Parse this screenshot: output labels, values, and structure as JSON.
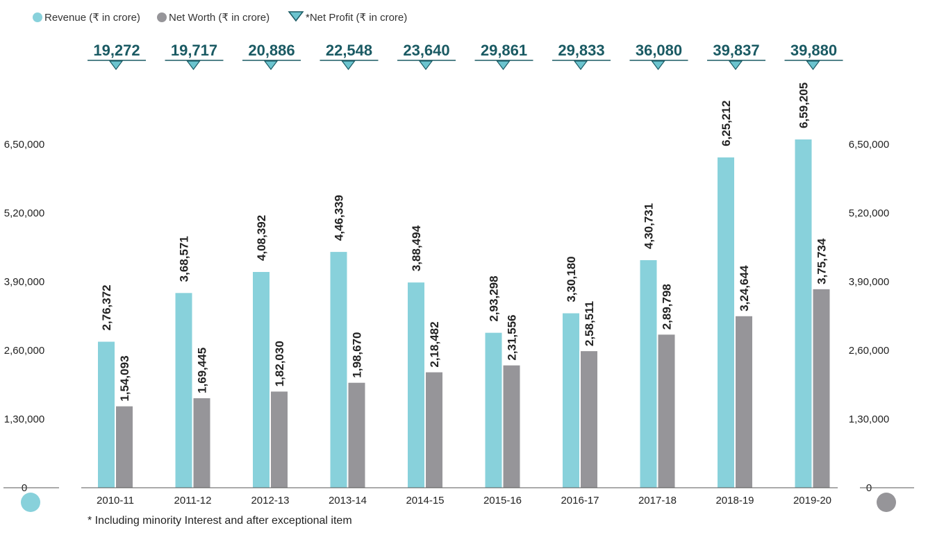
{
  "legend": {
    "revenue_label": "Revenue (₹ in crore)",
    "networth_label": "Net Worth (₹ in crore)",
    "profit_label": "*Net Profit (₹ in crore)"
  },
  "colors": {
    "revenue": "#88d1db",
    "networth": "#969599",
    "profit_text": "#1a5a63",
    "profit_marker": "#6cc4cf"
  },
  "footnote": "* Including minority Interest and after exceptional item",
  "chart_data": {
    "type": "bar",
    "categories": [
      "2010-11",
      "2011-12",
      "2012-13",
      "2013-14",
      "2014-15",
      "2015-16",
      "2016-17",
      "2017-18",
      "2018-19",
      "2019-20"
    ],
    "series": [
      {
        "name": "Revenue (₹ in crore)",
        "values": [
          276372,
          368571,
          408392,
          446339,
          388494,
          293298,
          330180,
          430731,
          625212,
          659205
        ],
        "labels": [
          "2,76,372",
          "3,68,571",
          "4,08,392",
          "4,46,339",
          "3,88,494",
          "2,93,298",
          "3,30,180",
          "4,30,731",
          "6,25,212",
          "6,59,205"
        ]
      },
      {
        "name": "Net Worth (₹ in crore)",
        "values": [
          154093,
          169445,
          182030,
          198670,
          218482,
          231556,
          258511,
          289798,
          324644,
          375734
        ],
        "labels": [
          "1,54,093",
          "1,69,445",
          "1,82,030",
          "1,98,670",
          "2,18,482",
          "2,31,556",
          "2,58,511",
          "2,89,798",
          "3,24,644",
          "3,75,734"
        ]
      },
      {
        "name": "*Net Profit (₹ in crore)",
        "values": [
          19272,
          19717,
          20886,
          22548,
          23640,
          29861,
          29833,
          36080,
          39837,
          39880
        ],
        "labels": [
          "19,272",
          "19,717",
          "20,886",
          "22,548",
          "23,640",
          "29,861",
          "29,833",
          "36,080",
          "39,837",
          "39,880"
        ]
      }
    ],
    "ylim": [
      0,
      650000
    ],
    "yticks": [
      0,
      130000,
      260000,
      390000,
      520000,
      650000
    ],
    "ytick_labels": [
      "0",
      "1,30,000",
      "2,60,000",
      "3,90,000",
      "5,20,000",
      "6,50,000"
    ],
    "grid": false,
    "legend_position": "top-left"
  }
}
